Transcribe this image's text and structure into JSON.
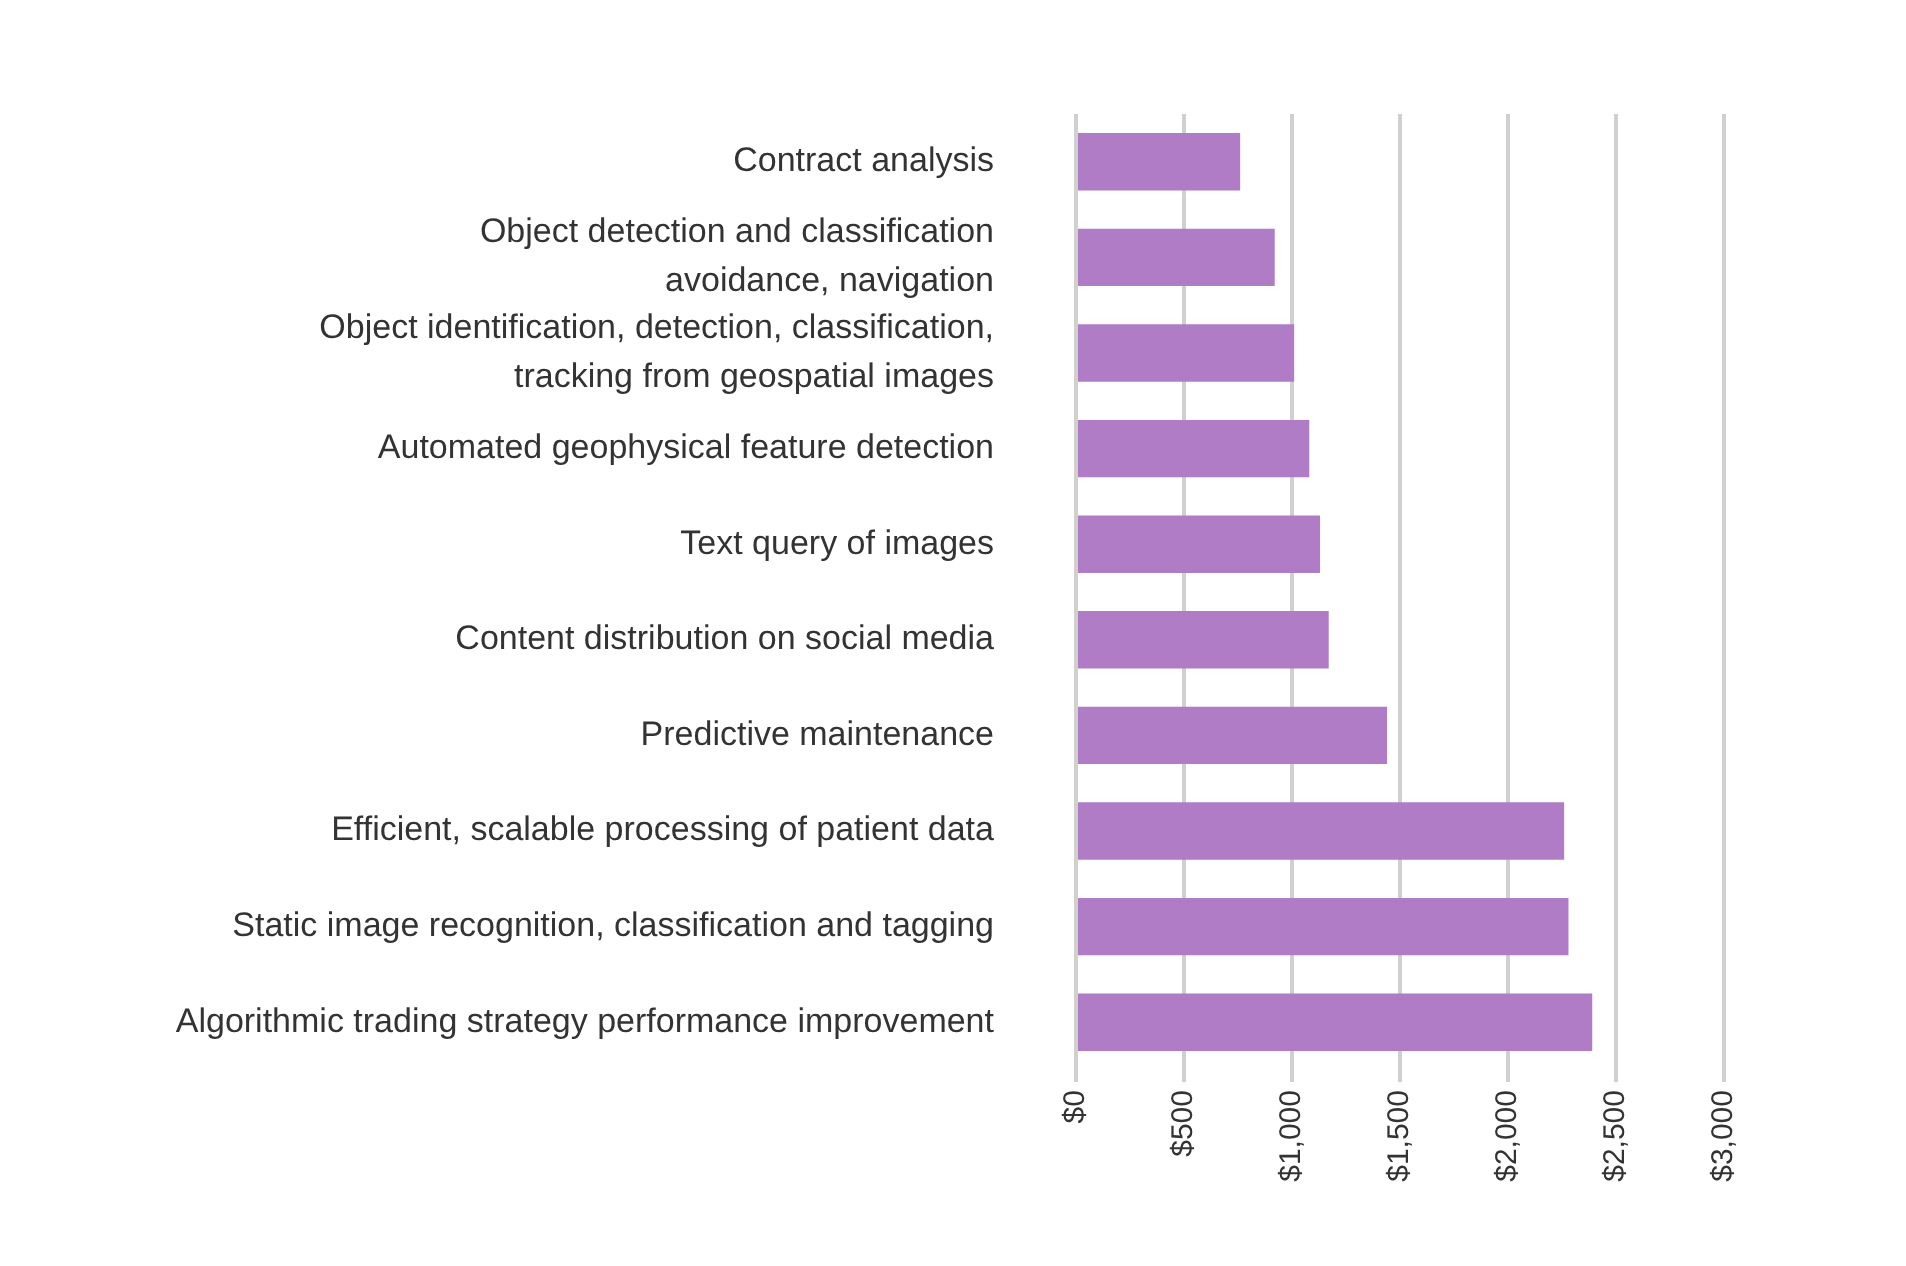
{
  "chart_data": {
    "type": "bar",
    "orientation": "horizontal",
    "categories": [
      "Contract analysis",
      "Object detection and classification\navoidance, navigation",
      "Object identification, detection, classification,\ntracking from geospatial images",
      "Automated geophysical feature detection",
      "Text query of images",
      "Content distribution on social media",
      "Predictive maintenance",
      "Efficient, scalable processing of patient data",
      "Static image recognition, classification and tagging",
      "Algorithmic trading strategy performance improvement"
    ],
    "values": [
      760,
      920,
      1010,
      1080,
      1130,
      1170,
      1440,
      2260,
      2280,
      2390
    ],
    "color": "#b07cc6",
    "xlim": [
      0,
      3000
    ],
    "xticks": [
      {
        "value": 0,
        "label": "$0"
      },
      {
        "value": 500,
        "label": "$500"
      },
      {
        "value": 1000,
        "label": "$1,000"
      },
      {
        "value": 1500,
        "label": "$1,500"
      },
      {
        "value": 2000,
        "label": "$2,000"
      },
      {
        "value": 2500,
        "label": "$2,500"
      },
      {
        "value": 3000,
        "label": "$3,000"
      }
    ],
    "grid": "x"
  }
}
